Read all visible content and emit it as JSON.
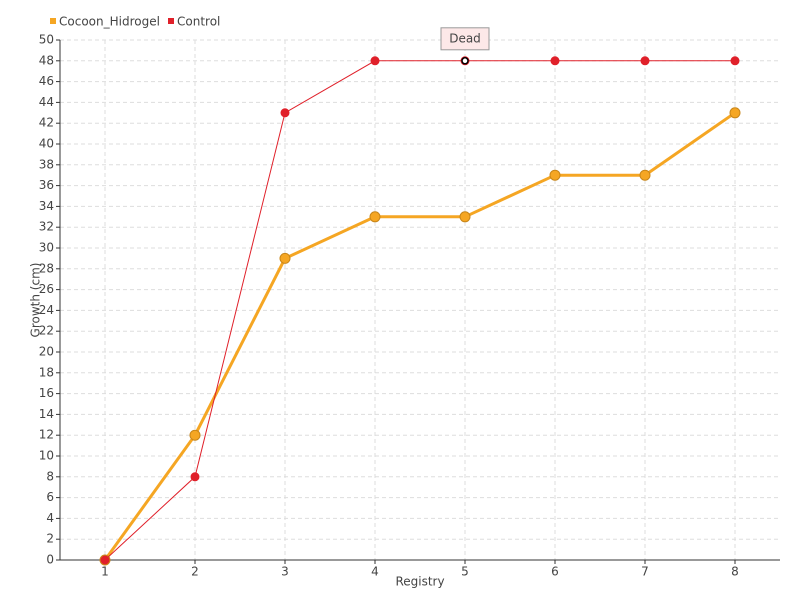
{
  "chart_data": {
    "type": "line",
    "x_label": "Registry",
    "y_label": "Growth (cm)",
    "x": [
      1,
      2,
      3,
      4,
      5,
      6,
      7,
      8
    ],
    "xlim": [
      0.5,
      8.5
    ],
    "xticks": [
      1,
      2,
      3,
      4,
      5,
      6,
      7,
      8
    ],
    "ylim": [
      0,
      50
    ],
    "yticks": [
      0,
      2,
      4,
      6,
      8,
      10,
      12,
      14,
      16,
      18,
      20,
      22,
      24,
      26,
      28,
      30,
      32,
      34,
      36,
      38,
      40,
      42,
      44,
      46,
      48,
      50
    ],
    "grid": true,
    "legend": "top-left",
    "series": [
      {
        "name": "Cocoon_Hidrogel",
        "color": "#f5a623",
        "values": [
          0,
          12,
          29,
          33,
          33,
          37,
          37,
          43
        ]
      },
      {
        "name": "Control",
        "color": "#e0202a",
        "values": [
          0,
          8,
          43,
          48,
          48,
          48,
          48,
          48
        ]
      }
    ],
    "annotations": [
      {
        "text": "Dead",
        "x": 5,
        "y": 48
      }
    ]
  }
}
